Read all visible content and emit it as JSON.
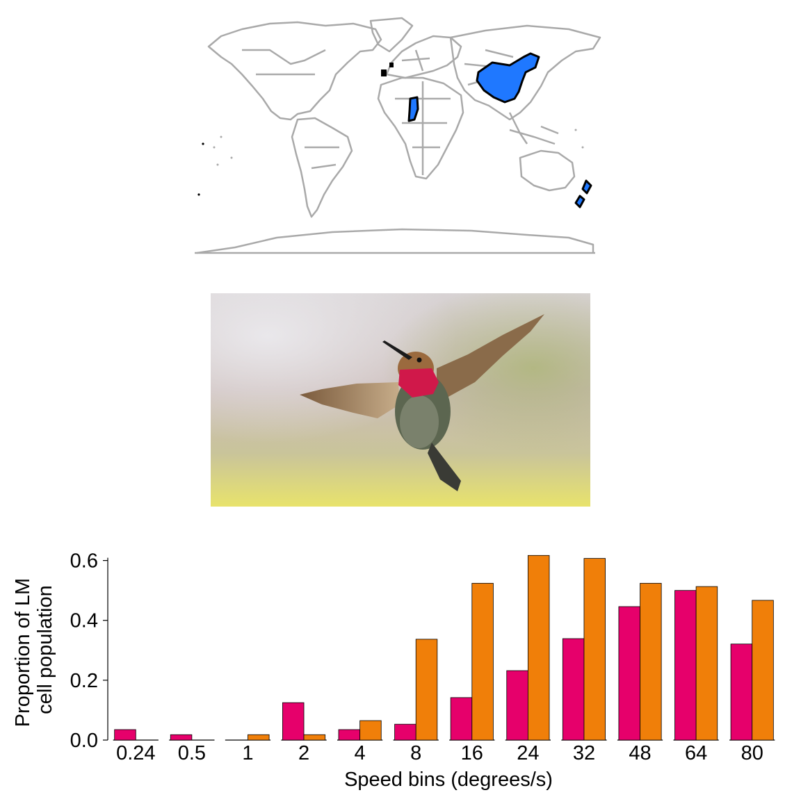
{
  "map": {
    "land_color": "#a9a9a9",
    "highlight_color": "#1f78ff",
    "highlight_outline": "#000000",
    "highlighted_regions": [
      "china",
      "central-africa",
      "new-zealand"
    ]
  },
  "photo": {
    "subject": "hummingbird-in-flight",
    "throat_color": "#d0184a",
    "wing_color": "#8a6b4a"
  },
  "chart_data": {
    "type": "bar",
    "categories": [
      "0.24",
      "0.5",
      "1",
      "2",
      "4",
      "8",
      "16",
      "24",
      "32",
      "48",
      "64",
      "80"
    ],
    "series": [
      {
        "color": "#e6006b",
        "values": [
          0.035,
          0.018,
          0.0,
          0.125,
          0.035,
          0.053,
          0.142,
          0.232,
          0.339,
          0.446,
          0.5,
          0.321
        ]
      },
      {
        "color": "#f07f09",
        "values": [
          0.0,
          0.0,
          0.018,
          0.018,
          0.065,
          0.337,
          0.524,
          0.617,
          0.607,
          0.524,
          0.513,
          0.467
        ]
      }
    ],
    "xlabel": "Speed bins (degrees/s)",
    "ylabel_line1": "Proportion of LM",
    "ylabel_line2": "cell population",
    "ylim": [
      0,
      0.62
    ],
    "yticks": [
      0.0,
      0.2,
      0.4,
      0.6
    ],
    "ytick_labels": [
      "0.0",
      "0.2",
      "0.4",
      "0.6"
    ],
    "grid": false,
    "legend": "none"
  }
}
